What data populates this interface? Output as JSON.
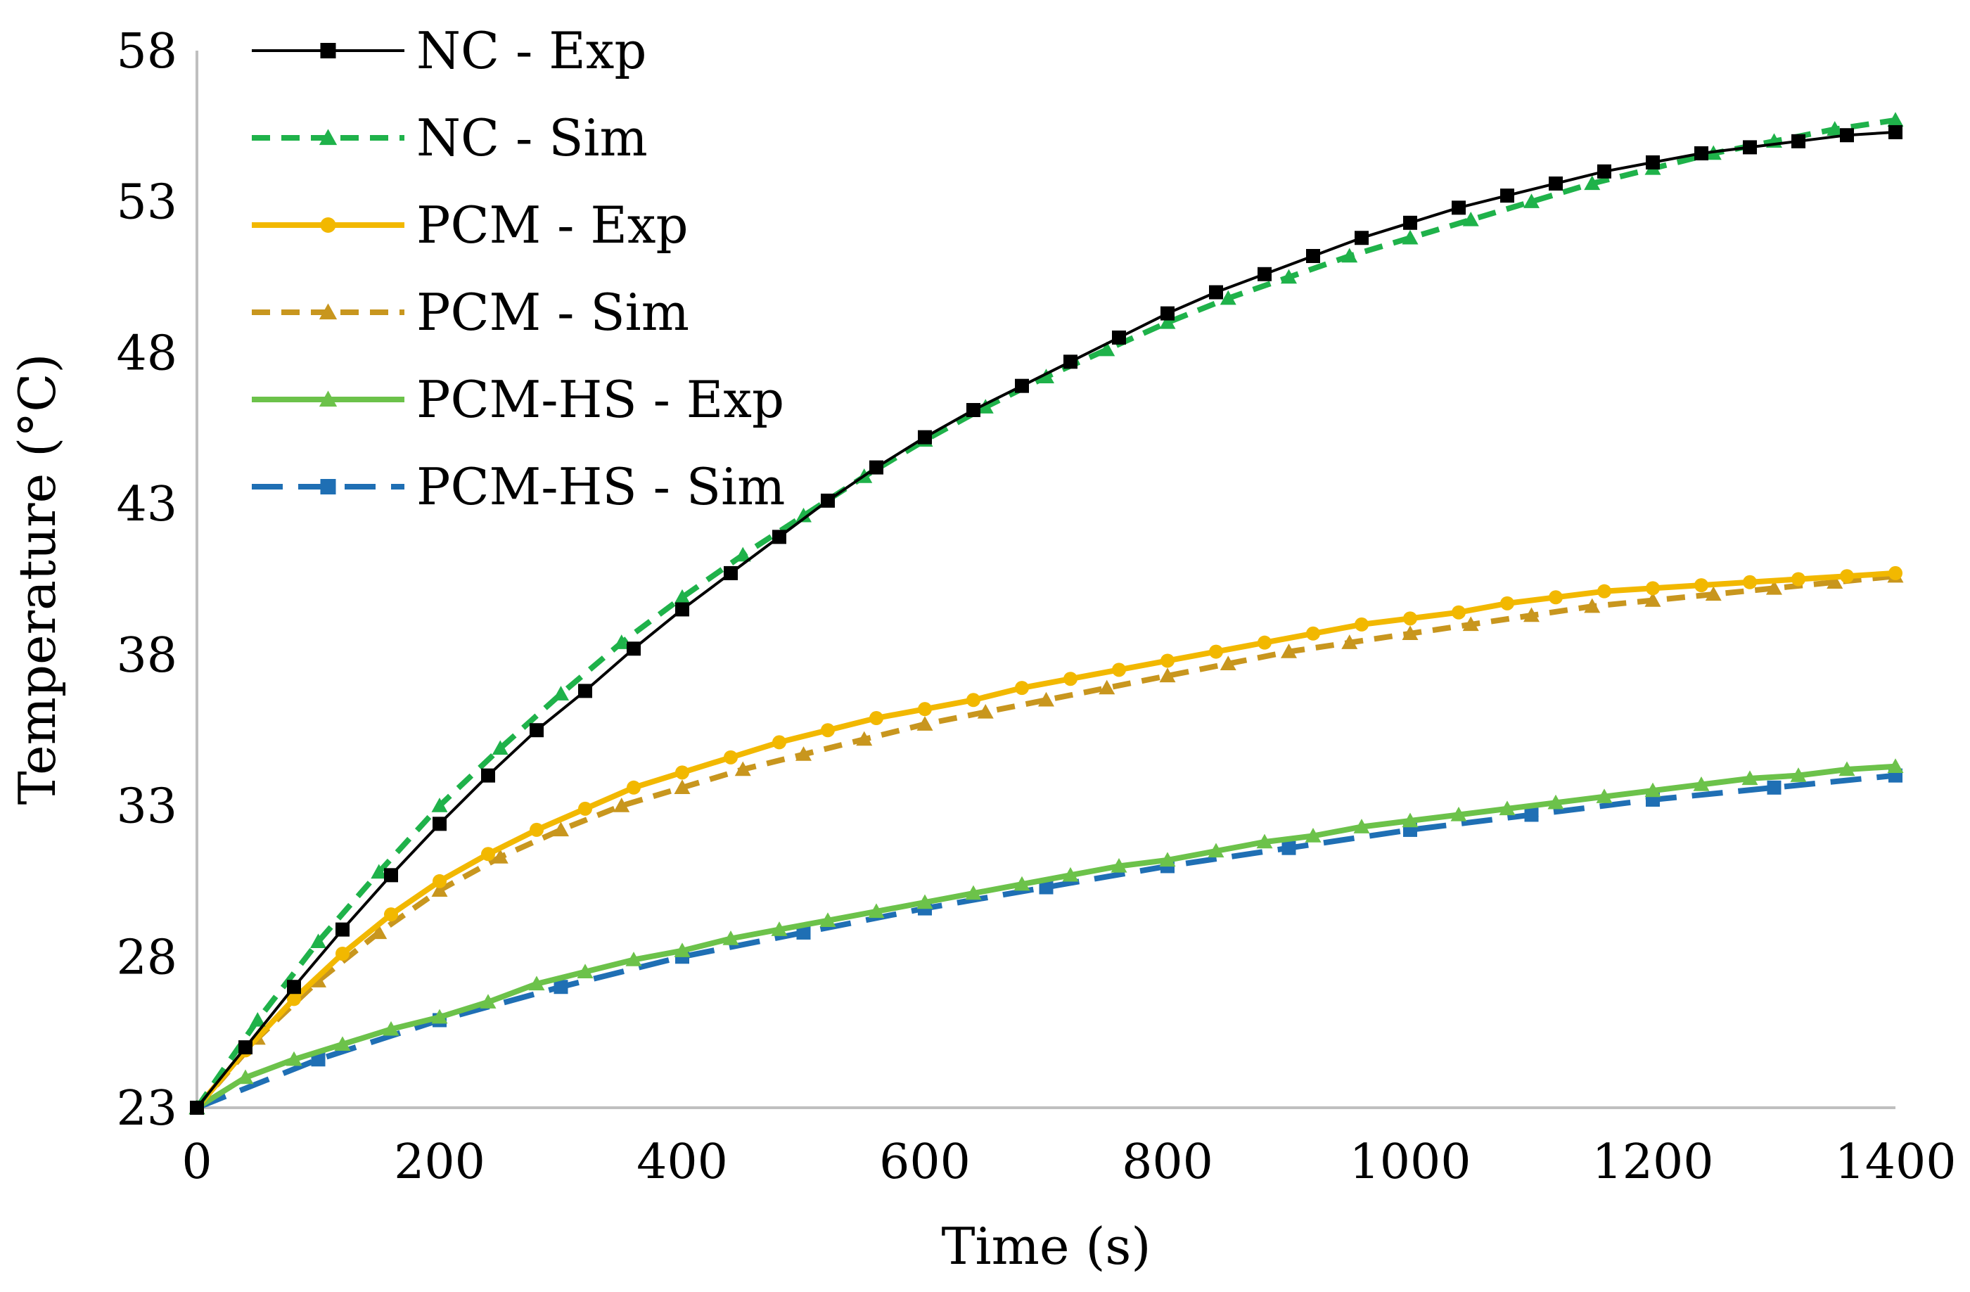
{
  "chart_data": {
    "type": "line",
    "xlabel": "Time (s)",
    "ylabel": "Temperature (°C)",
    "xlim": [
      0,
      1400
    ],
    "ylim": [
      23,
      58
    ],
    "x_ticks": [
      0,
      200,
      400,
      600,
      800,
      1000,
      1200,
      1400
    ],
    "y_ticks": [
      23,
      28,
      33,
      38,
      43,
      48,
      53,
      58
    ],
    "grid": false,
    "legend_position": "top-left",
    "series": [
      {
        "name": "NC - Exp",
        "color": "#000000",
        "dash": "solid",
        "marker": "square",
        "x": [
          0,
          40,
          80,
          120,
          160,
          200,
          240,
          280,
          320,
          360,
          400,
          440,
          480,
          520,
          560,
          600,
          640,
          680,
          720,
          760,
          800,
          840,
          880,
          920,
          960,
          1000,
          1040,
          1080,
          1120,
          1160,
          1200,
          1240,
          1280,
          1320,
          1360,
          1400
        ],
        "y": [
          23.0,
          25.0,
          27.0,
          28.9,
          30.7,
          32.4,
          34.0,
          35.5,
          36.8,
          38.2,
          39.5,
          40.7,
          41.9,
          43.1,
          44.2,
          45.2,
          46.1,
          46.9,
          47.7,
          48.5,
          49.3,
          50.0,
          50.6,
          51.2,
          51.8,
          52.3,
          52.8,
          53.2,
          53.6,
          54.0,
          54.3,
          54.6,
          54.8,
          55.0,
          55.2,
          55.3
        ]
      },
      {
        "name": "NC - Sim",
        "color": "#1fb24a",
        "dash": "dashed",
        "marker": "triangle",
        "x": [
          0,
          50,
          100,
          150,
          200,
          250,
          300,
          350,
          400,
          450,
          500,
          550,
          600,
          650,
          700,
          750,
          800,
          850,
          900,
          950,
          1000,
          1050,
          1100,
          1150,
          1200,
          1250,
          1300,
          1350,
          1400
        ],
        "y": [
          23.0,
          25.9,
          28.5,
          30.8,
          33.0,
          34.9,
          36.7,
          38.4,
          39.9,
          41.3,
          42.6,
          43.9,
          45.1,
          46.2,
          47.2,
          48.1,
          49.0,
          49.8,
          50.5,
          51.2,
          51.8,
          52.4,
          53.0,
          53.6,
          54.1,
          54.6,
          55.0,
          55.4,
          55.7
        ]
      },
      {
        "name": "PCM - Exp",
        "color": "#f2b800",
        "dash": "solid",
        "marker": "circle",
        "x": [
          0,
          40,
          80,
          120,
          160,
          200,
          240,
          280,
          320,
          360,
          400,
          440,
          480,
          520,
          560,
          600,
          640,
          680,
          720,
          760,
          800,
          840,
          880,
          920,
          960,
          1000,
          1040,
          1080,
          1120,
          1160,
          1200,
          1240,
          1280,
          1320,
          1360,
          1400
        ],
        "y": [
          23.0,
          24.9,
          26.6,
          28.1,
          29.4,
          30.5,
          31.4,
          32.2,
          32.9,
          33.6,
          34.1,
          34.6,
          35.1,
          35.5,
          35.9,
          36.2,
          36.5,
          36.9,
          37.2,
          37.5,
          37.8,
          38.1,
          38.4,
          38.7,
          39.0,
          39.2,
          39.4,
          39.7,
          39.9,
          40.1,
          40.2,
          40.3,
          40.4,
          40.5,
          40.6,
          40.7
        ]
      },
      {
        "name": "PCM - Sim",
        "color": "#c8961e",
        "dash": "dashed",
        "marker": "triangle",
        "x": [
          0,
          50,
          100,
          150,
          200,
          250,
          300,
          350,
          400,
          450,
          500,
          550,
          600,
          650,
          700,
          750,
          800,
          850,
          900,
          950,
          1000,
          1050,
          1100,
          1150,
          1200,
          1250,
          1300,
          1350,
          1400
        ],
        "y": [
          23.0,
          25.3,
          27.2,
          28.8,
          30.2,
          31.3,
          32.2,
          33.0,
          33.6,
          34.2,
          34.7,
          35.2,
          35.7,
          36.1,
          36.5,
          36.9,
          37.3,
          37.7,
          38.1,
          38.4,
          38.7,
          39.0,
          39.3,
          39.6,
          39.8,
          40.0,
          40.2,
          40.4,
          40.6
        ]
      },
      {
        "name": "PCM-HS - Exp",
        "color": "#6cc24a",
        "dash": "solid",
        "marker": "triangle",
        "x": [
          0,
          40,
          80,
          120,
          160,
          200,
          240,
          280,
          320,
          360,
          400,
          440,
          480,
          520,
          560,
          600,
          640,
          680,
          720,
          760,
          800,
          840,
          880,
          920,
          960,
          1000,
          1040,
          1080,
          1120,
          1160,
          1200,
          1240,
          1280,
          1320,
          1360,
          1400
        ],
        "y": [
          23.0,
          24.0,
          24.6,
          25.1,
          25.6,
          26.0,
          26.5,
          27.1,
          27.5,
          27.9,
          28.2,
          28.6,
          28.9,
          29.2,
          29.5,
          29.8,
          30.1,
          30.4,
          30.7,
          31.0,
          31.2,
          31.5,
          31.8,
          32.0,
          32.3,
          32.5,
          32.7,
          32.9,
          33.1,
          33.3,
          33.5,
          33.7,
          33.9,
          34.0,
          34.2,
          34.3
        ]
      },
      {
        "name": "PCM-HS - Sim",
        "color": "#1f6fb4",
        "dash": "long-dashed",
        "marker": "square",
        "x": [
          0,
          100,
          200,
          300,
          400,
          500,
          600,
          700,
          800,
          900,
          1000,
          1100,
          1200,
          1300,
          1400
        ],
        "y": [
          23.0,
          24.6,
          25.9,
          27.0,
          28.0,
          28.8,
          29.6,
          30.3,
          31.0,
          31.6,
          32.2,
          32.7,
          33.2,
          33.6,
          34.0
        ]
      }
    ]
  }
}
